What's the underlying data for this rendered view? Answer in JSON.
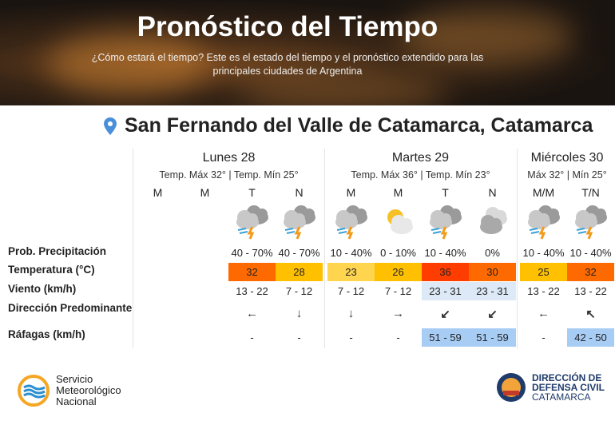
{
  "header": {
    "title": "Pronóstico del Tiempo",
    "subtitle": "¿Cómo estará el tiempo? Este es el estado del tiempo y el pronóstico extendido para las principales ciudades de Argentina"
  },
  "location": {
    "name": "San Fernando del Valle de Catamarca, Catamarca",
    "icon": "map-pin-icon",
    "color": "#4a90d9"
  },
  "row_labels": [
    "Prob. Precipitación",
    "Temperatura (°C)",
    "Viento (km/h)",
    "Dirección Predominante",
    "Ráfagas (km/h)"
  ],
  "days": [
    {
      "name": "Lunes 28",
      "summary": "Temp. Máx 32° | Temp. Mín 25°",
      "periods": [
        {
          "label": "M",
          "icon": "",
          "precip": "",
          "temp": "",
          "temp_color": "",
          "wind": "",
          "dir": "",
          "gust": "",
          "highlight_wind": false
        },
        {
          "label": "M",
          "icon": "",
          "precip": "",
          "temp": "",
          "temp_color": "",
          "wind": "",
          "dir": "",
          "gust": "",
          "highlight_wind": false
        },
        {
          "label": "T",
          "icon": "storm-cloud-icon",
          "precip": "40 - 70%",
          "temp": "32",
          "temp_color": "#ff6a00",
          "wind": "13 - 22",
          "dir": "←",
          "gust": "-",
          "highlight_wind": false
        },
        {
          "label": "N",
          "icon": "storm-cloud-icon",
          "precip": "40 - 70%",
          "temp": "28",
          "temp_color": "#ffc000",
          "wind": "7 - 12",
          "dir": "↓",
          "gust": "-",
          "highlight_wind": false
        }
      ]
    },
    {
      "name": "Martes 29",
      "summary": "Temp. Máx 36° | Temp. Mín 23°",
      "periods": [
        {
          "label": "M",
          "icon": "storm-cloud-icon",
          "precip": "10 - 40%",
          "temp": "23",
          "temp_color": "#ffd54f",
          "wind": "7 - 12",
          "dir": "↓",
          "gust": "-",
          "highlight_wind": false
        },
        {
          "label": "M",
          "icon": "partly-sunny-icon",
          "precip": "0 - 10%",
          "temp": "26",
          "temp_color": "#ffc000",
          "wind": "7 - 12",
          "dir": "→",
          "gust": "-",
          "highlight_wind": false
        },
        {
          "label": "T",
          "icon": "storm-cloud-icon",
          "precip": "10 - 40%",
          "temp": "36",
          "temp_color": "#ff3d00",
          "wind": "23 - 31",
          "dir": "↙",
          "gust": "51 - 59",
          "highlight_wind": true
        },
        {
          "label": "N",
          "icon": "cloudy-icon",
          "precip": "0%",
          "temp": "30",
          "temp_color": "#ff6a00",
          "wind": "23 - 31",
          "dir": "↙",
          "gust": "51 - 59",
          "highlight_wind": true
        }
      ]
    },
    {
      "name": "Miércoles 30",
      "summary": "Máx 32° | Mín 25°",
      "periods": [
        {
          "label": "M/M",
          "icon": "storm-cloud-icon",
          "precip": "10 - 40%",
          "temp": "25",
          "temp_color": "#ffc000",
          "wind": "13 - 22",
          "dir": "←",
          "gust": "-",
          "highlight_wind": false
        },
        {
          "label": "T/N",
          "icon": "storm-cloud-icon",
          "precip": "10 - 40%",
          "temp": "32",
          "temp_color": "#ff6a00",
          "wind": "13 - 22",
          "dir": "↖",
          "gust": "42 - 50",
          "highlight_wind": false
        }
      ]
    }
  ],
  "colors": {
    "wind_highlight": "#dde9f7",
    "gust_highlight": "#a8cdf5"
  },
  "footer": {
    "smn": {
      "line1": "Servicio",
      "line2": "Meteorológico",
      "line3": "Nacional"
    },
    "dc": {
      "line1": "DIRECCIÓN DE",
      "line2": "DEFENSA CIVIL",
      "line3": "CATAMARCA"
    }
  }
}
